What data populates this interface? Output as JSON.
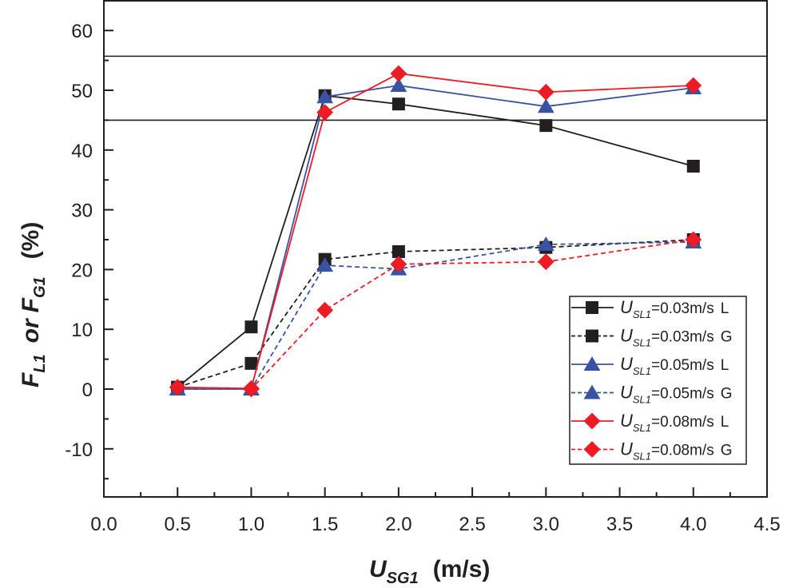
{
  "chart_data": {
    "type": "line",
    "xlabel": {
      "main": "U",
      "sub": "SG1",
      "unit": "(m/s)"
    },
    "ylabel": {
      "f1": "F",
      "sub1": "L1",
      "or": "or",
      "f2": "F",
      "sub2": "G1",
      "unit": "(%)"
    },
    "xlim": [
      0,
      4.5
    ],
    "ylim": [
      -18,
      65
    ],
    "xticks": [
      "0.0",
      "0.5",
      "1.0",
      "1.5",
      "2.0",
      "2.5",
      "3.0",
      "3.5",
      "4.0",
      "4.5"
    ],
    "yticks": [
      "-10",
      "0",
      "10",
      "20",
      "30",
      "40",
      "50",
      "60"
    ],
    "hlines": [
      55.7,
      45
    ],
    "legend_placement": "bottom-right",
    "x": [
      0.5,
      1.0,
      1.5,
      2.0,
      3.0,
      4.0
    ],
    "series": [
      {
        "name": {
          "u": "U",
          "sub": "SL1",
          "val": "=0.03m/s",
          "phase": "L"
        },
        "color": "#231f20",
        "dash": false,
        "marker": "square",
        "values": [
          0.3,
          10.4,
          49.1,
          47.7,
          44.1,
          37.3
        ]
      },
      {
        "name": {
          "u": "U",
          "sub": "SL1",
          "val": "=0.03m/s",
          "phase": "G"
        },
        "color": "#231f20",
        "dash": true,
        "marker": "square",
        "values": [
          0.3,
          4.3,
          21.7,
          23.0,
          23.7,
          25.0
        ]
      },
      {
        "name": {
          "u": "U",
          "sub": "SL1",
          "val": "=0.05m/s",
          "phase": "L"
        },
        "color": "#3953a4",
        "dash": false,
        "marker": "triangle",
        "values": [
          0.0,
          0.0,
          48.9,
          50.8,
          47.3,
          50.4
        ]
      },
      {
        "name": {
          "u": "U",
          "sub": "SL1",
          "val": "=0.05m/s",
          "phase": "G"
        },
        "color": "#3953a4",
        "dash": true,
        "marker": "triangle",
        "values": [
          0.0,
          0.0,
          20.7,
          20.1,
          24.2,
          24.6
        ]
      },
      {
        "name": {
          "u": "U",
          "sub": "SL1",
          "val": "=0.08m/s",
          "phase": "L"
        },
        "color": "#ed1c24",
        "dash": false,
        "marker": "diamond",
        "values": [
          0.3,
          0.1,
          46.3,
          52.8,
          49.7,
          50.8
        ]
      },
      {
        "name": {
          "u": "U",
          "sub": "SL1",
          "val": "=0.08m/s",
          "phase": "G"
        },
        "color": "#ed1c24",
        "dash": true,
        "marker": "diamond",
        "values": [
          0.3,
          0.0,
          13.2,
          20.9,
          21.3,
          25.0
        ]
      }
    ]
  }
}
